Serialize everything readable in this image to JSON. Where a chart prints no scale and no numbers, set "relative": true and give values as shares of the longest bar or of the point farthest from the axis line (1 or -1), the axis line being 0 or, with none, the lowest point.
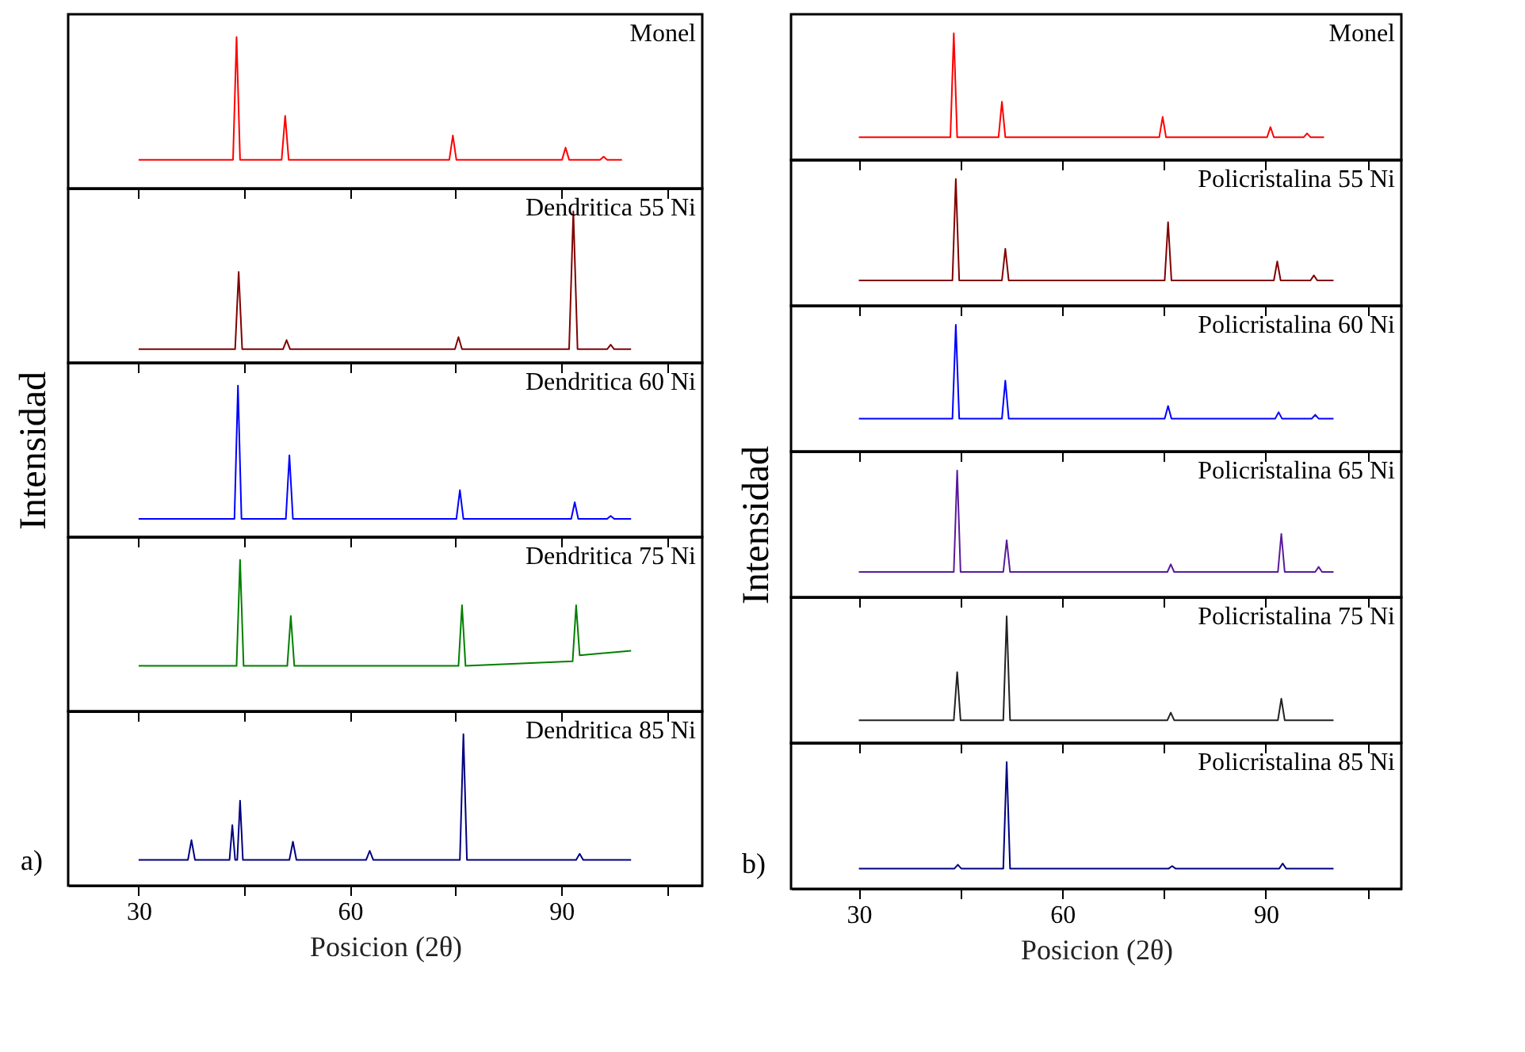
{
  "chart_data": [
    {
      "type": "line",
      "relative": true,
      "title": "Monel",
      "xlim": [
        20,
        110
      ],
      "xticks": [
        30,
        {
          "value": 45,
          "label": null
        },
        60,
        {
          "value": 75,
          "label": null
        },
        90,
        {
          "value": 105,
          "label": null
        }
      ],
      "tick_labels": false,
      "color": "#ff0000",
      "x": [
        30,
        43.4,
        43.9,
        44.4,
        50.3,
        50.8,
        51.3,
        74.1,
        74.6,
        75.1,
        90.1,
        90.6,
        91.1,
        95.5,
        96,
        96.5,
        98.6
      ],
      "values": [
        0.19,
        0.19,
        1.0,
        0.19,
        0.19,
        0.48,
        0.19,
        0.19,
        0.35,
        0.19,
        0.19,
        0.27,
        0.19,
        0.19,
        0.21,
        0.19,
        0.19
      ]
    },
    {
      "type": "line",
      "relative": true,
      "title": "Dendritica 55 Ni",
      "xlim": [
        20,
        110
      ],
      "xticks": [
        30,
        {
          "value": 45,
          "label": null
        },
        60,
        {
          "value": 75,
          "label": null
        },
        90,
        {
          "value": 105,
          "label": null
        }
      ],
      "tick_labels": false,
      "color": "#800000",
      "x": [
        30,
        43.7,
        44.2,
        44.7,
        50.5,
        51,
        51.5,
        74.9,
        75.4,
        75.9,
        91.1,
        91.7,
        92.3,
        96.5,
        97,
        97.5,
        99.9
      ],
      "values": [
        0.09,
        0.09,
        0.6,
        0.09,
        0.09,
        0.15,
        0.09,
        0.09,
        0.17,
        0.09,
        0.09,
        1.0,
        0.09,
        0.09,
        0.12,
        0.09,
        0.09
      ]
    },
    {
      "type": "line",
      "relative": true,
      "title": "Dendritica 60 Ni",
      "ylabel": "Intensidad",
      "xlim": [
        20,
        110
      ],
      "xticks": [
        30,
        {
          "value": 45,
          "label": null
        },
        60,
        {
          "value": 75,
          "label": null
        },
        90,
        {
          "value": 105,
          "label": null
        }
      ],
      "tick_labels": false,
      "color": "#0000ff",
      "x": [
        30,
        43.6,
        44.1,
        44.6,
        50.9,
        51.4,
        51.9,
        75.1,
        75.6,
        76.1,
        91.4,
        91.9,
        92.4,
        96.5,
        97,
        97.5,
        99.9
      ],
      "values": [
        0.12,
        0.12,
        1.0,
        0.12,
        0.12,
        0.54,
        0.12,
        0.12,
        0.31,
        0.12,
        0.12,
        0.23,
        0.12,
        0.12,
        0.14,
        0.12,
        0.12
      ]
    },
    {
      "type": "line",
      "relative": true,
      "title": "Dendritica 75 Ni",
      "xlim": [
        20,
        110
      ],
      "xticks": [
        30,
        {
          "value": 45,
          "label": null
        },
        60,
        {
          "value": 75,
          "label": null
        },
        90,
        {
          "value": 105,
          "label": null
        }
      ],
      "tick_labels": false,
      "color": "#008000",
      "x": [
        30,
        43.9,
        44.4,
        44.9,
        51.1,
        51.6,
        52.1,
        75.4,
        75.9,
        76.4,
        91.6,
        92.1,
        92.6,
        99.9
      ],
      "values": [
        0.3,
        0.3,
        1.0,
        0.3,
        0.3,
        0.63,
        0.3,
        0.3,
        0.7,
        0.3,
        0.33,
        0.7,
        0.37,
        0.4
      ]
    },
    {
      "type": "line",
      "relative": true,
      "title": "Dendritica 85 Ni",
      "xlabel": "Posicion (2θ)",
      "annotations": [
        "a)"
      ],
      "xlim": [
        20,
        110
      ],
      "xticks": [
        30,
        {
          "value": 45,
          "label": null
        },
        60,
        {
          "value": 75,
          "label": null
        },
        90,
        {
          "value": 105,
          "label": null
        }
      ],
      "tick_labels": "x",
      "color": "#000080",
      "x": [
        30,
        37,
        37.5,
        38,
        42.9,
        43.3,
        43.7,
        44,
        44.4,
        44.8,
        51.4,
        51.9,
        52.4,
        62.3,
        62.8,
        63.3,
        75.6,
        76.1,
        76.6,
        92.1,
        92.6,
        93.1,
        99.9
      ],
      "values": [
        0.17,
        0.17,
        0.3,
        0.17,
        0.17,
        0.4,
        0.17,
        0.17,
        0.56,
        0.17,
        0.17,
        0.29,
        0.17,
        0.17,
        0.23,
        0.17,
        0.17,
        1.0,
        0.17,
        0.17,
        0.21,
        0.17,
        0.17
      ]
    },
    {
      "type": "line",
      "relative": true,
      "title": "Monel",
      "xlim": [
        20,
        110
      ],
      "xticks": [
        30,
        {
          "value": 45,
          "label": null
        },
        60,
        {
          "value": 75,
          "label": null
        },
        90,
        {
          "value": 105,
          "label": null
        }
      ],
      "tick_labels": false,
      "color": "#ff0000",
      "x": [
        30,
        43.5,
        44,
        44.5,
        50.6,
        51.1,
        51.6,
        74.3,
        74.8,
        75.3,
        90.2,
        90.7,
        91.2,
        95.6,
        96.1,
        96.6,
        98.6
      ],
      "values": [
        0.18,
        0.18,
        1.0,
        0.18,
        0.18,
        0.46,
        0.18,
        0.18,
        0.34,
        0.18,
        0.18,
        0.26,
        0.18,
        0.18,
        0.21,
        0.18,
        0.18
      ]
    },
    {
      "type": "line",
      "relative": true,
      "title": "Policristalina 55 Ni",
      "xlim": [
        20,
        110
      ],
      "xticks": [
        30,
        {
          "value": 45,
          "label": null
        },
        60,
        {
          "value": 75,
          "label": null
        },
        90,
        {
          "value": 105,
          "label": null
        }
      ],
      "tick_labels": false,
      "color": "#800000",
      "x": [
        30,
        43.8,
        44.3,
        44.8,
        51.1,
        51.6,
        52.1,
        75.1,
        75.6,
        76.1,
        91.2,
        91.7,
        92.2,
        96.6,
        97.1,
        97.6,
        100
      ],
      "values": [
        0.2,
        0.2,
        1.0,
        0.2,
        0.2,
        0.45,
        0.2,
        0.2,
        0.66,
        0.2,
        0.2,
        0.35,
        0.2,
        0.2,
        0.24,
        0.2,
        0.2
      ]
    },
    {
      "type": "line",
      "relative": true,
      "title": "Policristalina 60 Ni",
      "xlim": [
        20,
        110
      ],
      "xticks": [
        30,
        {
          "value": 45,
          "label": null
        },
        60,
        {
          "value": 75,
          "label": null
        },
        90,
        {
          "value": 105,
          "label": null
        }
      ],
      "tick_labels": false,
      "color": "#0000ff",
      "x": [
        30,
        43.8,
        44.3,
        44.8,
        51.1,
        51.6,
        52.1,
        75.1,
        75.6,
        76.1,
        91.4,
        91.9,
        92.4,
        96.8,
        97.3,
        97.8,
        100
      ],
      "values": [
        0.26,
        0.26,
        1.0,
        0.26,
        0.26,
        0.56,
        0.26,
        0.26,
        0.36,
        0.26,
        0.26,
        0.31,
        0.26,
        0.26,
        0.29,
        0.26,
        0.26
      ]
    },
    {
      "type": "line",
      "relative": true,
      "title": "Policristalina 65 Ni",
      "ylabel": "Intensidad",
      "xlim": [
        20,
        110
      ],
      "xticks": [
        30,
        {
          "value": 45,
          "label": null
        },
        60,
        {
          "value": 75,
          "label": null
        },
        90,
        {
          "value": 105,
          "label": null
        }
      ],
      "tick_labels": false,
      "color": "#5a1a9a",
      "x": [
        30,
        44,
        44.5,
        45,
        51.3,
        51.8,
        52.3,
        75.5,
        76,
        76.5,
        91.8,
        92.3,
        92.8,
        97.3,
        97.8,
        98.3,
        100
      ],
      "values": [
        0.2,
        0.2,
        1.0,
        0.2,
        0.2,
        0.45,
        0.2,
        0.2,
        0.26,
        0.2,
        0.2,
        0.5,
        0.2,
        0.2,
        0.24,
        0.2,
        0.2
      ]
    },
    {
      "type": "line",
      "relative": true,
      "title": "Policristalina 75 Ni",
      "xlim": [
        20,
        110
      ],
      "xticks": [
        30,
        {
          "value": 45,
          "label": null
        },
        60,
        {
          "value": 75,
          "label": null
        },
        90,
        {
          "value": 105,
          "label": null
        }
      ],
      "tick_labels": false,
      "color": "#222222",
      "x": [
        30,
        44,
        44.5,
        45,
        51.3,
        51.8,
        52.3,
        75.5,
        76,
        76.5,
        91.8,
        92.3,
        92.8,
        100
      ],
      "values": [
        0.18,
        0.18,
        0.56,
        0.18,
        0.18,
        1.0,
        0.18,
        0.18,
        0.24,
        0.18,
        0.18,
        0.35,
        0.18,
        0.18
      ]
    },
    {
      "type": "line",
      "relative": true,
      "title": "Policristalina 85 Ni",
      "xlabel": "Posicion (2θ)",
      "annotations": [
        "b)"
      ],
      "xlim": [
        20,
        110
      ],
      "xticks": [
        30,
        {
          "value": 45,
          "label": null
        },
        60,
        {
          "value": 75,
          "label": null
        },
        90,
        {
          "value": 105,
          "label": null
        }
      ],
      "tick_labels": "x",
      "color": "#000080",
      "x": [
        30,
        44.1,
        44.6,
        45.1,
        51.3,
        51.8,
        52.3,
        75.7,
        76.2,
        76.7,
        92,
        92.5,
        93,
        100
      ],
      "values": [
        0.16,
        0.16,
        0.19,
        0.16,
        0.16,
        1.0,
        0.16,
        0.16,
        0.18,
        0.16,
        0.16,
        0.2,
        0.16,
        0.16
      ]
    }
  ]
}
